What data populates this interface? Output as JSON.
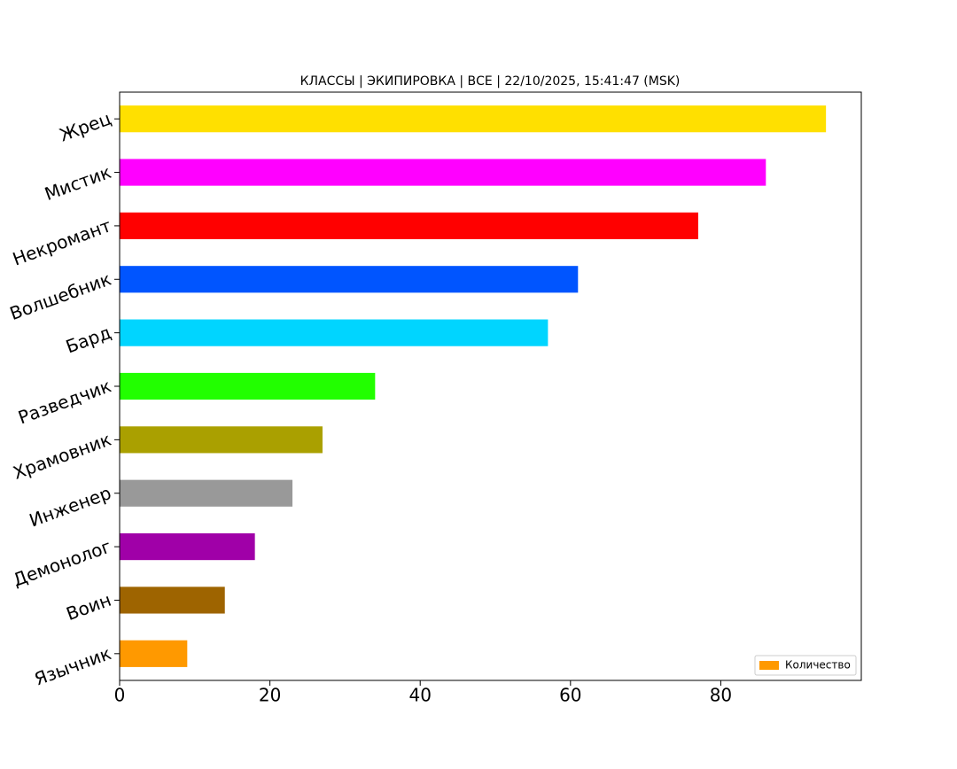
{
  "chart_data": {
    "type": "barh",
    "title": "КЛАССЫ | ЭКИПИРОВКА | ВСЕ | 22/10/2025, 15:41:47 (MSK)",
    "categories": [
      "Жрец",
      "Мистик",
      "Некромант",
      "Волшебник",
      "Бард",
      "Разведчик",
      "Храмовник",
      "Инженер",
      "Демонолог",
      "Воин",
      "Язычник"
    ],
    "series": [
      {
        "name": "Количество",
        "color": "#ff9900",
        "colors": [
          "#ffe000",
          "#ff00ff",
          "#ff0000",
          "#0055ff",
          "#00d5ff",
          "#22ff00",
          "#aaa000",
          "#999999",
          "#a000a8",
          "#9e6400",
          "#ff9900"
        ],
        "values": [
          94,
          86,
          77,
          61,
          57,
          34,
          27,
          23,
          18,
          14,
          9
        ]
      }
    ],
    "xlim": [
      0,
      98.7
    ],
    "xticks": [
      0,
      20,
      40,
      60,
      80
    ],
    "legend": "lower right"
  }
}
